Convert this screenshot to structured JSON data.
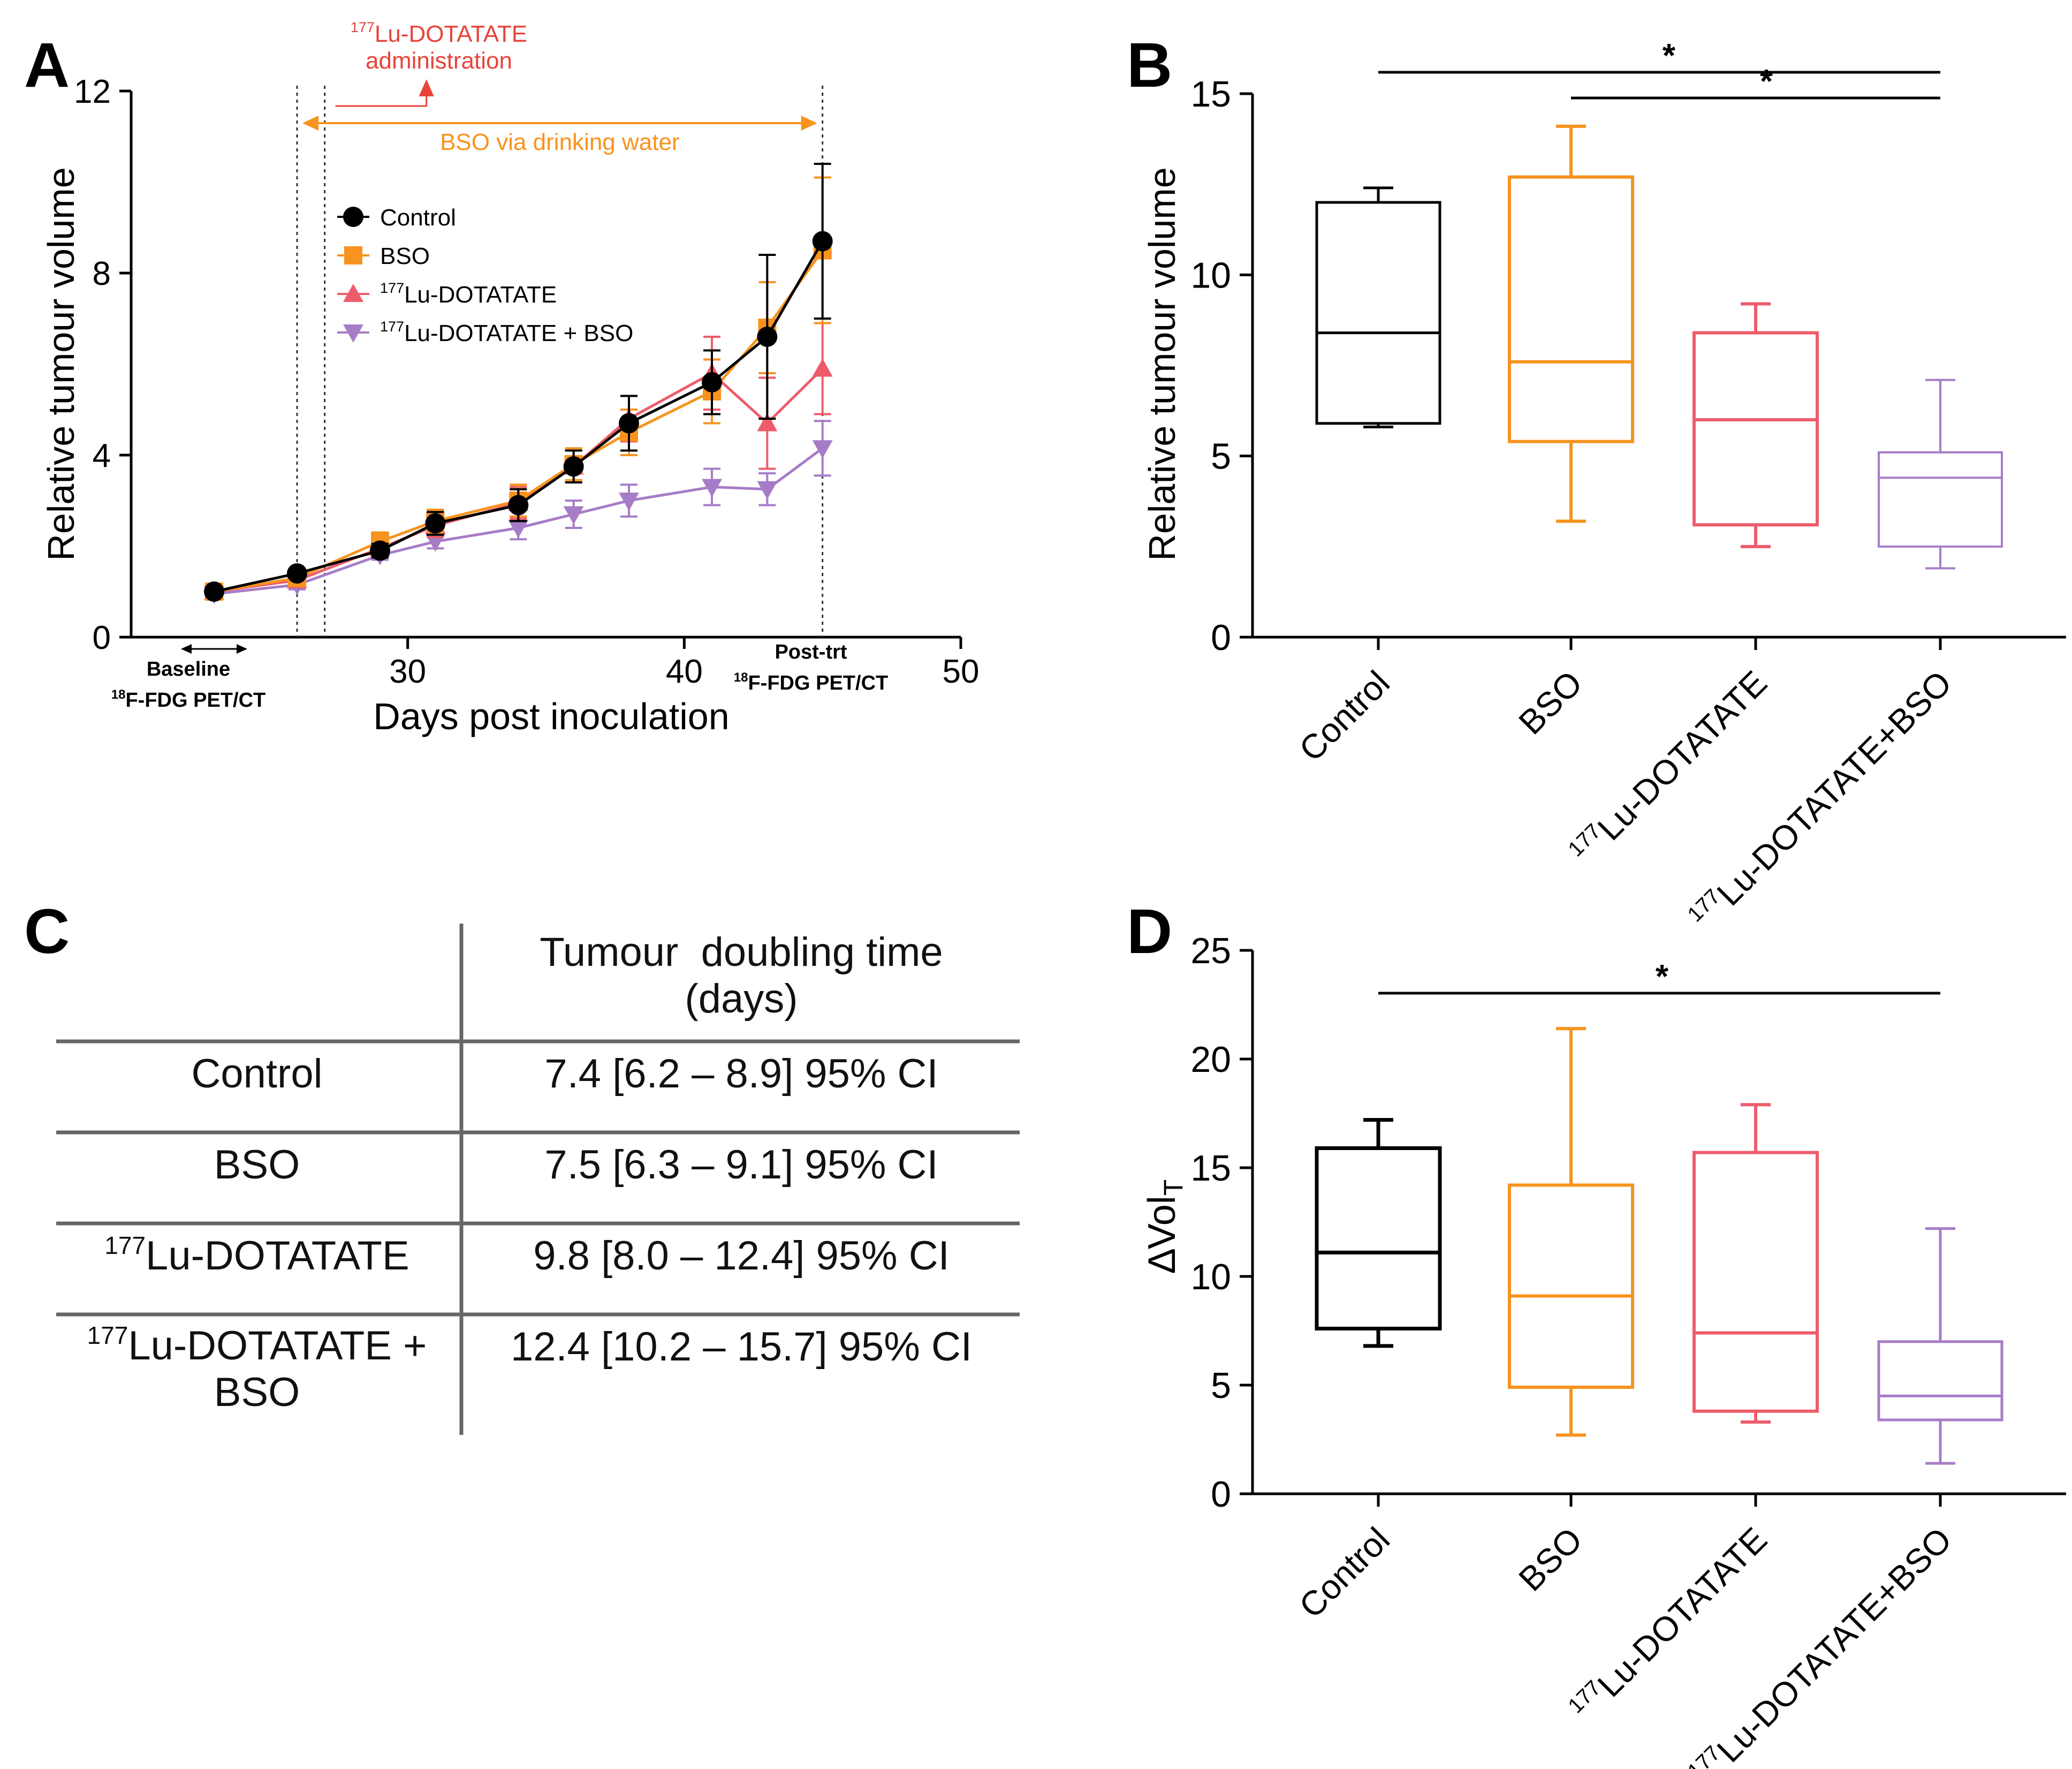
{
  "colors": {
    "control": "#000000",
    "bso": "#F7931E",
    "lu": "#EE5C6C",
    "lubso": "#A77CC7",
    "annot": "#E8443A"
  },
  "chart_data": [
    {
      "panel": "A",
      "type": "line",
      "xlabel": "Days post inoculation",
      "ylabel": "Relative tumour volume",
      "xlim": [
        20,
        50
      ],
      "ylim": [
        0,
        12
      ],
      "xticks": [
        "30",
        "40",
        "50"
      ],
      "yticks": [
        "0",
        "4",
        "8",
        "12"
      ],
      "x": [
        23,
        26,
        29,
        31,
        34,
        36,
        38,
        41,
        43,
        45
      ],
      "series": [
        {
          "name": "Control",
          "sup": "",
          "label": "Control",
          "marker": "circle",
          "values": [
            1.0,
            1.4,
            1.9,
            2.5,
            2.9,
            3.75,
            4.7,
            5.6,
            6.6,
            8.7
          ],
          "err": [
            0.1,
            0.1,
            0.15,
            0.25,
            0.35,
            0.35,
            0.6,
            0.7,
            1.8,
            1.7
          ]
        },
        {
          "name": "BSO",
          "sup": "",
          "label": "BSO",
          "marker": "square",
          "values": [
            1.0,
            1.3,
            2.1,
            2.55,
            3.0,
            3.8,
            4.5,
            5.4,
            6.8,
            8.5
          ],
          "err": [
            0.1,
            0.1,
            0.2,
            0.25,
            0.35,
            0.35,
            0.5,
            0.7,
            1.0,
            1.6
          ]
        },
        {
          "name": "177Lu-DOTATATE",
          "sup": "177",
          "label": "Lu-DOTATATE",
          "marker": "triangle",
          "values": [
            1.0,
            1.25,
            1.95,
            2.45,
            2.95,
            3.75,
            4.8,
            5.8,
            4.7,
            5.9
          ],
          "err": [
            0.1,
            0.1,
            0.15,
            0.25,
            0.35,
            0.35,
            0.5,
            0.8,
            1.0,
            1.0
          ]
        },
        {
          "name": "177Lu-DOTATATE + BSO",
          "sup": "177",
          "label": "Lu-DOTATATE + BSO",
          "marker": "triangle-down",
          "values": [
            0.95,
            1.15,
            1.8,
            2.1,
            2.4,
            2.7,
            3.0,
            3.3,
            3.25,
            4.15
          ],
          "err": [
            0.05,
            0.1,
            0.1,
            0.15,
            0.25,
            0.3,
            0.35,
            0.4,
            0.35,
            0.6
          ]
        }
      ],
      "annotations": {
        "lu_admin_sup": "177",
        "lu_admin_line1": "Lu-DOTATATE",
        "lu_admin_line2": "administration",
        "bso_water": "BSO via drinking water",
        "baseline_line1": "Baseline",
        "baseline_sup": "18",
        "baseline_line2": "F-FDG PET/CT",
        "posttrt_line1": "Post-trt",
        "posttrt_sup": "18",
        "posttrt_line2": "F-FDG PET/CT"
      },
      "vlines_days": [
        26,
        27,
        45
      ],
      "bso_range_days": [
        26,
        45
      ],
      "admin_day": 27
    },
    {
      "panel": "B",
      "type": "box",
      "ylabel": "Relative tumour volume",
      "ylim": [
        0,
        15
      ],
      "yticks": [
        "0",
        "5",
        "10",
        "15"
      ],
      "categories": [
        "Control",
        "BSO",
        "177Lu-DOTATATE",
        "177Lu-DOTATATE+BSO"
      ],
      "cat_sup": [
        "",
        "",
        "177",
        "177"
      ],
      "cat_text": [
        "Control",
        "BSO",
        "Lu-DOTATATE",
        "Lu-DOTATATE+BSO"
      ],
      "boxes": [
        {
          "min": 5.8,
          "q1": 5.9,
          "median": 8.4,
          "q3": 12.0,
          "max": 12.4
        },
        {
          "min": 3.2,
          "q1": 5.4,
          "median": 7.6,
          "q3": 12.7,
          "max": 14.1
        },
        {
          "min": 2.5,
          "q1": 3.1,
          "median": 6.0,
          "q3": 8.4,
          "max": 9.2
        },
        {
          "min": 1.9,
          "q1": 2.5,
          "median": 4.4,
          "q3": 5.1,
          "max": 7.1
        }
      ],
      "significance": [
        {
          "from": 0,
          "to": 3,
          "label": "*"
        },
        {
          "from": 1,
          "to": 3,
          "label": "*"
        }
      ]
    },
    {
      "panel": "D",
      "type": "box",
      "ylabel_main": "∆Vol",
      "ylabel_sub": "T",
      "ylim": [
        0,
        25
      ],
      "yticks": [
        "0",
        "5",
        "10",
        "15",
        "20",
        "25"
      ],
      "categories": [
        "Control",
        "BSO",
        "177Lu-DOTATATE",
        "177Lu-DOTATATE+BSO"
      ],
      "cat_sup": [
        "",
        "",
        "177",
        "177"
      ],
      "cat_text": [
        "Control",
        "BSO",
        "Lu-DOTATATE",
        "Lu-DOTATATE+BSO"
      ],
      "boxes": [
        {
          "min": 6.8,
          "q1": 7.6,
          "median": 11.1,
          "q3": 15.9,
          "max": 17.2
        },
        {
          "min": 2.7,
          "q1": 4.9,
          "median": 9.1,
          "q3": 14.2,
          "max": 21.4
        },
        {
          "min": 3.3,
          "q1": 3.8,
          "median": 7.4,
          "q3": 15.7,
          "max": 17.9
        },
        {
          "min": 1.4,
          "q1": 3.4,
          "median": 4.5,
          "q3": 7.0,
          "max": 12.2
        }
      ],
      "significance": [
        {
          "from": 0,
          "to": 3,
          "label": "*"
        }
      ]
    }
  ],
  "panels": {
    "a": "A",
    "b": "B",
    "c": "C",
    "d": "D"
  },
  "table": {
    "header_line1": "Tumour  doubling time",
    "header_line2": "(days)",
    "rows": [
      {
        "sup": "",
        "name": "Control",
        "name2": "",
        "value": "7.4 [6.2 – 8.9] 95% CI"
      },
      {
        "sup": "",
        "name": "BSO",
        "name2": "",
        "value": "7.5 [6.3 – 9.1] 95% CI"
      },
      {
        "sup": "177",
        "name": "Lu-DOTATATE",
        "name2": "",
        "value": "9.8 [8.0 – 12.4] 95% CI"
      },
      {
        "sup": "177",
        "name": "Lu-DOTATATE +",
        "name2": "BSO",
        "value": "12.4 [10.2 – 15.7] 95% CI"
      }
    ]
  }
}
